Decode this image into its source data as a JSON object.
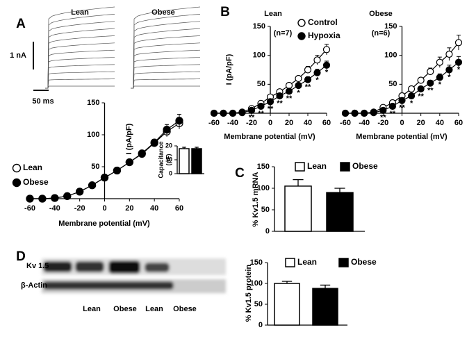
{
  "panels": [
    "A",
    "B",
    "C",
    "D"
  ],
  "traces": {
    "titles": [
      "Lean",
      "Obese"
    ],
    "scale_y": "1 nA",
    "scale_x": "50 ms"
  },
  "blot": {
    "rows": [
      "Kv 1.5",
      "β-Actin"
    ],
    "lanes": [
      "Lean",
      "Obese",
      "Lean",
      "Obese"
    ]
  },
  "chart_data": [
    {
      "type": "line",
      "xlabel": "Membrane potential (mV)",
      "ylabel": "I (pA/pF)",
      "x": [
        -60,
        -50,
        -40,
        -30,
        -20,
        -10,
        0,
        10,
        20,
        30,
        40,
        50,
        60
      ],
      "xlim": [
        -60,
        60
      ],
      "xticks": [
        -60,
        -40,
        -20,
        0,
        20,
        40,
        60
      ],
      "ylim": [
        0,
        150
      ],
      "yticks": [
        50,
        100,
        150
      ],
      "legend": "left",
      "series": [
        {
          "name": "Lean",
          "color": "#ffffff",
          "values": [
            0,
            0,
            1,
            4,
            11,
            21,
            33,
            44,
            57,
            70,
            87,
            105,
            118
          ],
          "errors": [
            null,
            null,
            null,
            null,
            null,
            null,
            null,
            null,
            null,
            null,
            5,
            8,
            9
          ]
        },
        {
          "name": "Obese",
          "color": "#000000",
          "values": [
            0,
            0,
            1,
            4,
            11,
            21,
            33,
            44,
            57,
            71,
            88,
            108,
            122
          ],
          "errors": [
            null,
            null,
            null,
            null,
            null,
            null,
            null,
            null,
            null,
            null,
            5,
            8,
            10
          ]
        }
      ]
    },
    {
      "type": "bar",
      "ylabel": [
        "Capacitance",
        "(pF)"
      ],
      "ylim": [
        0,
        20
      ],
      "yticks": [
        0,
        10,
        20
      ],
      "values": [
        18,
        18
      ],
      "errors": [
        1,
        1
      ],
      "colors": [
        "#ffffff",
        "#000000"
      ]
    },
    {
      "type": "line",
      "title": "Lean",
      "note": "(n=7)",
      "xlabel": "Membrane potential (mV)",
      "ylabel": "I (pA/pF)",
      "x": [
        -60,
        -50,
        -40,
        -30,
        -20,
        -10,
        0,
        10,
        20,
        30,
        40,
        50,
        60
      ],
      "xlim": [
        -60,
        60
      ],
      "xticks": [
        -60,
        -40,
        -20,
        0,
        20,
        40,
        60
      ],
      "ylim": [
        0,
        150
      ],
      "yticks": [
        50,
        100,
        150
      ],
      "legend": "top-right",
      "series": [
        {
          "name": "Control",
          "color": "#ffffff",
          "values": [
            0,
            0,
            0,
            2,
            8,
            17,
            28,
            37,
            48,
            60,
            75,
            92,
            110
          ],
          "errors": [
            null,
            null,
            null,
            null,
            null,
            null,
            null,
            null,
            null,
            4,
            6,
            8,
            9
          ]
        },
        {
          "name": "Hypoxia",
          "color": "#000000",
          "values": [
            0,
            0,
            0,
            1,
            5,
            12,
            20,
            30,
            38,
            48,
            58,
            70,
            83
          ],
          "errors": [
            null,
            null,
            null,
            null,
            null,
            null,
            null,
            null,
            null,
            4,
            5,
            6,
            7
          ],
          "significance": [
            null,
            null,
            null,
            null,
            "**",
            "**",
            "**",
            "**",
            "**",
            "*",
            "**",
            "*",
            "*"
          ]
        }
      ]
    },
    {
      "type": "line",
      "title": "Obese",
      "note": "(n=6)",
      "xlabel": "Membrane potential (mV)",
      "x": [
        -60,
        -50,
        -40,
        -30,
        -20,
        -10,
        0,
        10,
        20,
        30,
        40,
        50,
        60
      ],
      "xlim": [
        -60,
        60
      ],
      "xticks": [
        -60,
        -40,
        -20,
        0,
        20,
        40,
        60
      ],
      "ylim": [
        0,
        150
      ],
      "yticks": [
        50,
        100,
        150
      ],
      "series": [
        {
          "color": "#ffffff",
          "values": [
            0,
            0,
            0,
            2,
            10,
            18,
            30,
            42,
            57,
            72,
            88,
            102,
            122
          ],
          "errors": [
            null,
            null,
            null,
            null,
            null,
            null,
            null,
            null,
            null,
            6,
            9,
            11,
            13
          ]
        },
        {
          "color": "#000000",
          "values": [
            0,
            0,
            0,
            1,
            5,
            12,
            22,
            30,
            42,
            52,
            62,
            75,
            88
          ],
          "errors": [
            null,
            null,
            null,
            null,
            null,
            null,
            null,
            null,
            null,
            5,
            6,
            8,
            10
          ],
          "significance": [
            null,
            null,
            null,
            null,
            "**",
            "**",
            "**",
            "*",
            "**",
            "**",
            "*",
            "*",
            "*"
          ]
        }
      ]
    },
    {
      "type": "bar",
      "ylabel": "% Kv1.5 mRNA",
      "ylim": [
        0,
        150
      ],
      "yticks": [
        0,
        50,
        100,
        150
      ],
      "series": [
        {
          "name": "Lean",
          "color": "#ffffff",
          "values": [
            105
          ],
          "errors": [
            15
          ]
        },
        {
          "name": "Obese",
          "color": "#000000",
          "values": [
            90
          ],
          "errors": [
            10
          ]
        }
      ]
    },
    {
      "type": "bar",
      "ylabel": "% Kv1.5 protein",
      "ylim": [
        0,
        150
      ],
      "yticks": [
        0,
        50,
        100,
        150
      ],
      "series": [
        {
          "name": "Lean",
          "color": "#ffffff",
          "values": [
            100
          ],
          "errors": [
            5
          ]
        },
        {
          "name": "Obese",
          "color": "#000000",
          "values": [
            88
          ],
          "errors": [
            8
          ]
        }
      ]
    }
  ]
}
